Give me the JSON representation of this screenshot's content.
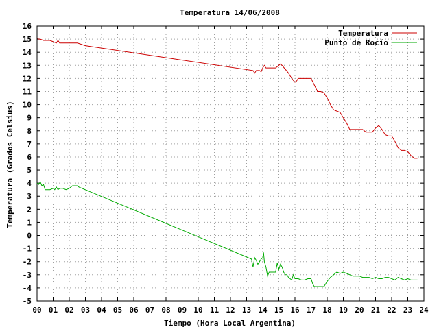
{
  "chart_data": {
    "type": "line",
    "title": "Temperatura 14/06/2008",
    "xlabel": "Tiempo (Hora Local Argentina)",
    "ylabel": "Temperatura (Grados Celsius)",
    "xlim": [
      0,
      24
    ],
    "ylim": [
      -5,
      16
    ],
    "xticks": [
      "00",
      "01",
      "02",
      "03",
      "04",
      "05",
      "06",
      "07",
      "08",
      "09",
      "10",
      "11",
      "12",
      "13",
      "14",
      "15",
      "16",
      "17",
      "18",
      "19",
      "20",
      "21",
      "22",
      "23",
      "24"
    ],
    "yticks": [
      -5,
      -4,
      -3,
      -2,
      -1,
      0,
      1,
      2,
      3,
      4,
      5,
      6,
      7,
      8,
      9,
      10,
      11,
      12,
      13,
      14,
      15,
      16
    ],
    "grid": true,
    "legend_position": "top-right",
    "series": [
      {
        "name": "Temperatura",
        "color": "#cc0000",
        "x": [
          0.0,
          0.1,
          0.2,
          0.4,
          0.6,
          0.8,
          1.0,
          1.2,
          1.3,
          1.4,
          1.6,
          2.0,
          2.5,
          3.0,
          13.4,
          13.5,
          13.6,
          13.8,
          13.9,
          14.0,
          14.1,
          14.2,
          14.4,
          14.6,
          14.8,
          15.0,
          15.1,
          15.2,
          15.4,
          15.6,
          15.8,
          16.0,
          16.1,
          16.2,
          16.4,
          16.6,
          16.8,
          17.0,
          17.2,
          17.4,
          17.6,
          17.8,
          18.0,
          18.2,
          18.4,
          18.6,
          18.8,
          19.0,
          19.2,
          19.4,
          19.6,
          19.8,
          20.0,
          20.2,
          20.4,
          20.6,
          20.8,
          21.0,
          21.2,
          21.4,
          21.6,
          21.8,
          22.0,
          22.2,
          22.4,
          22.6,
          22.8,
          23.0,
          23.2,
          23.4,
          23.6
        ],
        "y": [
          15.1,
          15.0,
          15.0,
          14.9,
          14.9,
          14.9,
          14.8,
          14.7,
          14.9,
          14.7,
          14.7,
          14.7,
          14.7,
          14.5,
          12.6,
          12.4,
          12.6,
          12.6,
          12.5,
          12.8,
          13.0,
          12.8,
          12.8,
          12.8,
          12.8,
          13.0,
          13.1,
          13.0,
          12.7,
          12.4,
          12.0,
          11.7,
          11.8,
          12.0,
          12.0,
          12.0,
          12.0,
          12.0,
          11.5,
          11.0,
          11.0,
          10.9,
          10.5,
          10.0,
          9.6,
          9.5,
          9.4,
          9.0,
          8.6,
          8.1,
          8.1,
          8.1,
          8.1,
          8.1,
          7.9,
          7.9,
          7.9,
          8.2,
          8.4,
          8.1,
          7.7,
          7.6,
          7.6,
          7.2,
          6.7,
          6.5,
          6.5,
          6.4,
          6.1,
          5.9,
          5.9
        ]
      },
      {
        "name": "Punto de Rocío",
        "color": "#00aa00",
        "x": [
          0.0,
          0.1,
          0.2,
          0.3,
          0.4,
          0.5,
          0.6,
          0.7,
          0.8,
          1.0,
          1.1,
          1.2,
          1.3,
          1.4,
          1.6,
          1.8,
          2.0,
          2.2,
          2.5,
          2.6,
          13.3,
          13.4,
          13.5,
          13.6,
          13.7,
          13.8,
          13.9,
          14.0,
          14.05,
          14.1,
          14.2,
          14.3,
          14.4,
          14.6,
          14.8,
          14.9,
          15.0,
          15.1,
          15.2,
          15.3,
          15.4,
          15.5,
          15.6,
          15.8,
          15.9,
          16.0,
          16.2,
          16.4,
          16.6,
          16.8,
          17.0,
          17.1,
          17.2,
          17.4,
          17.6,
          17.8,
          18.0,
          18.2,
          18.4,
          18.6,
          18.8,
          19.0,
          19.2,
          19.4,
          19.6,
          19.8,
          20.0,
          20.2,
          20.4,
          20.6,
          20.8,
          21.0,
          21.2,
          21.4,
          21.6,
          21.8,
          22.0,
          22.2,
          22.4,
          22.6,
          22.8,
          23.0,
          23.2,
          23.4,
          23.6
        ],
        "y": [
          4.0,
          3.9,
          4.1,
          3.8,
          3.9,
          3.5,
          3.5,
          3.5,
          3.5,
          3.6,
          3.5,
          3.7,
          3.5,
          3.6,
          3.6,
          3.5,
          3.6,
          3.8,
          3.8,
          3.7,
          -1.8,
          -2.4,
          -1.7,
          -1.9,
          -2.2,
          -2.0,
          -1.8,
          -1.7,
          -1.3,
          -2.0,
          -2.4,
          -3.1,
          -2.8,
          -2.8,
          -2.8,
          -2.1,
          -2.6,
          -2.2,
          -2.4,
          -2.8,
          -3.0,
          -3.0,
          -3.2,
          -3.4,
          -3.0,
          -3.3,
          -3.3,
          -3.4,
          -3.4,
          -3.3,
          -3.3,
          -3.7,
          -3.9,
          -3.9,
          -3.9,
          -3.9,
          -3.5,
          -3.2,
          -3.0,
          -2.8,
          -2.9,
          -2.8,
          -2.9,
          -3.0,
          -3.1,
          -3.1,
          -3.1,
          -3.2,
          -3.2,
          -3.2,
          -3.3,
          -3.2,
          -3.3,
          -3.3,
          -3.2,
          -3.2,
          -3.3,
          -3.4,
          -3.2,
          -3.3,
          -3.4,
          -3.3,
          -3.4,
          -3.4,
          -3.4
        ]
      }
    ]
  }
}
